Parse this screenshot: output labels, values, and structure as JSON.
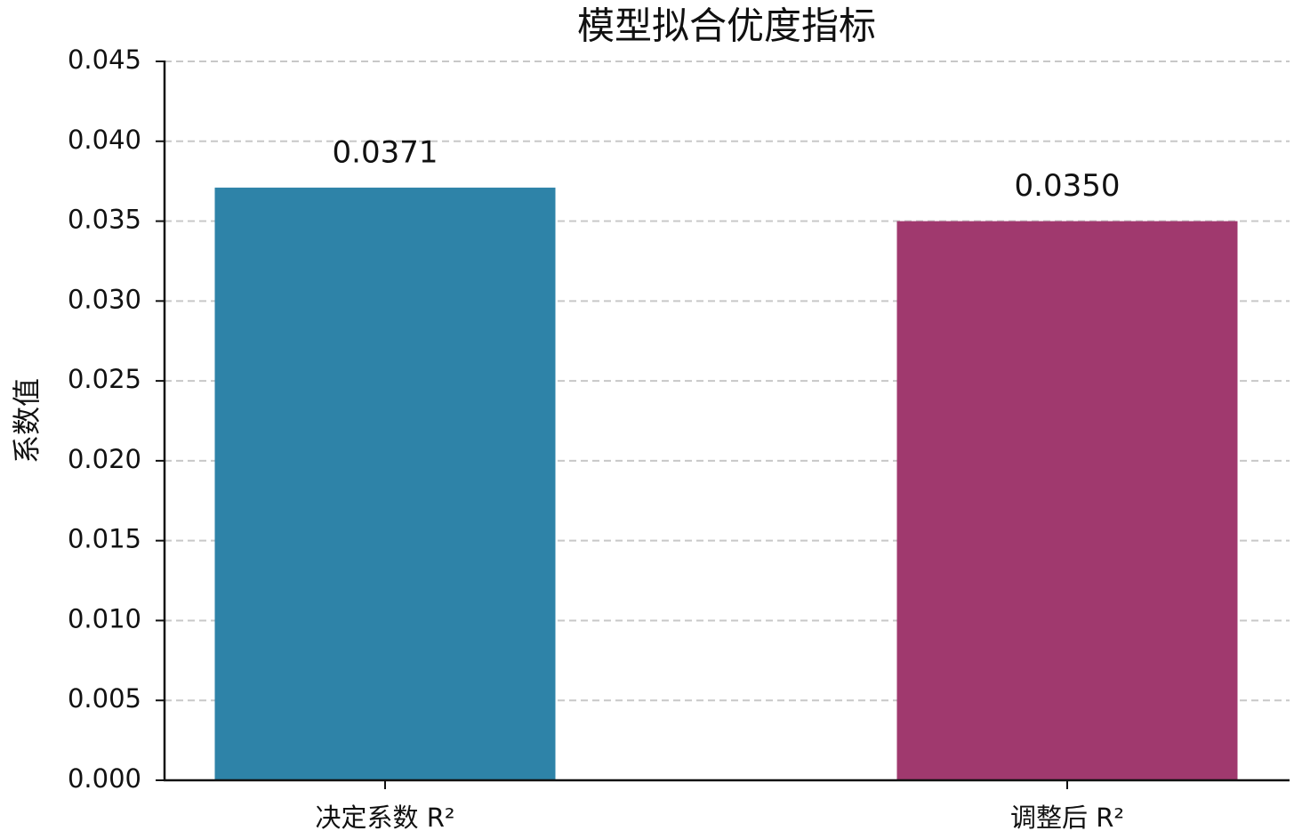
{
  "chart_data": {
    "type": "bar",
    "title": "模型拟合优度指标",
    "ylabel": "系数值",
    "categories": [
      "决定系数 R²",
      "调整后 R²"
    ],
    "values": [
      0.0371,
      0.035
    ],
    "value_labels": [
      "0.0371",
      "0.0350"
    ],
    "colors": [
      "#2e83a8",
      "#a0396e"
    ],
    "ylim": [
      0,
      0.045
    ],
    "yticks": [
      {
        "value": 0,
        "label": "0.000"
      },
      {
        "value": 0.005,
        "label": "0.005"
      },
      {
        "value": 0.01,
        "label": "0.010"
      },
      {
        "value": 0.015,
        "label": "0.015"
      },
      {
        "value": 0.02,
        "label": "0.020"
      },
      {
        "value": 0.025,
        "label": "0.025"
      },
      {
        "value": 0.03,
        "label": "0.030"
      },
      {
        "value": 0.035,
        "label": "0.035"
      },
      {
        "value": 0.04,
        "label": "0.040"
      },
      {
        "value": 0.045,
        "label": "0.045"
      }
    ],
    "grid": true
  }
}
